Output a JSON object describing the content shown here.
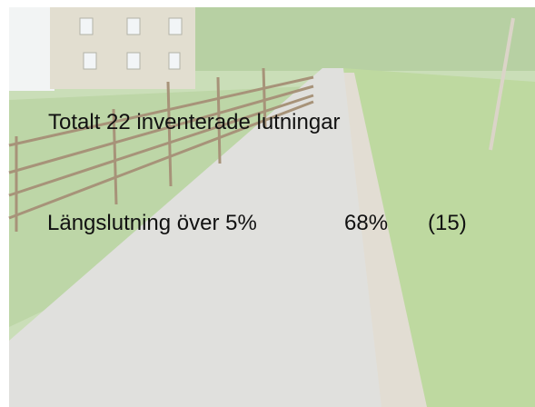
{
  "slide": {
    "title": "Totalt 22 inventerade lutningar",
    "stat": {
      "label": "Längslutning över 5%",
      "percent": "68%",
      "count": "(15)"
    }
  }
}
